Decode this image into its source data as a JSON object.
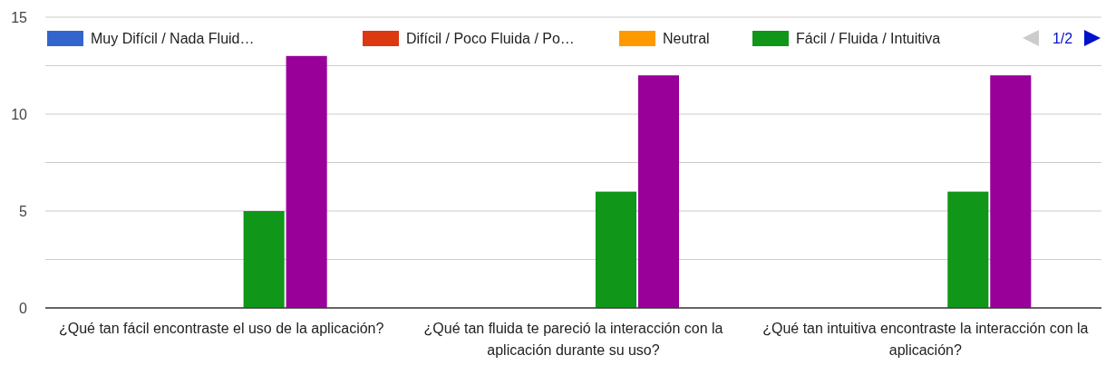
{
  "chart_data": {
    "type": "bar",
    "categories": [
      "¿Qué tan fácil encontraste el uso de la aplicación?",
      "¿Qué tan fluida te pareció la interacción con la aplicación durante su uso?",
      "¿Qué tan intuitiva encontraste la interacción con la aplicación?"
    ],
    "series": [
      {
        "name": "Muy Difícil / Nada Fluid…",
        "color": "#3366cc",
        "values": [
          0,
          0,
          0
        ]
      },
      {
        "name": "Difícil / Poco Fluida / Po…",
        "color": "#dc3912",
        "values": [
          0,
          0,
          0
        ]
      },
      {
        "name": "Neutral",
        "color": "#ff9900",
        "values": [
          0,
          0,
          0
        ]
      },
      {
        "name": "Fácil / Fluida / Intuitiva",
        "color": "#109618",
        "values": [
          5,
          6,
          6
        ]
      },
      {
        "color": "#990099",
        "values": [
          13,
          12,
          12
        ]
      }
    ],
    "ylim": [
      0,
      15
    ],
    "yticks": [
      0,
      {
        "value": 2.5,
        "label": null
      },
      5,
      {
        "value": 7.5,
        "label": null
      },
      10,
      {
        "value": 12.5,
        "label": null
      },
      15
    ],
    "grid": "y",
    "legend": "top",
    "annotations": [
      "1/2"
    ]
  }
}
